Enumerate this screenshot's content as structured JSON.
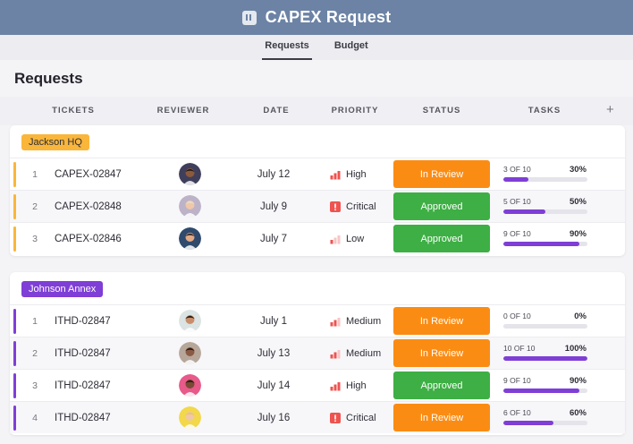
{
  "app": {
    "title": "CAPEX Request"
  },
  "tabs": [
    {
      "label": "Requests",
      "active": true
    },
    {
      "label": "Budget",
      "active": false
    }
  ],
  "page": {
    "title": "Requests"
  },
  "columns": {
    "tickets": "TICKETS",
    "reviewer": "REVIEWER",
    "date": "DATE",
    "priority": "PRIORITY",
    "status": "STATUS",
    "tasks": "TASKS",
    "add": "+"
  },
  "colors": {
    "high": "#ef5350",
    "critical": "#ef5350",
    "in_review": "#fb8c13",
    "approved": "#3daf44",
    "progress": "#7f3ed6"
  },
  "groups": [
    {
      "name": "Jackson HQ",
      "tag_color": "#f9b63b",
      "tag_text_color": "#2d2d36",
      "accent": "#f9b63b",
      "rows": [
        {
          "num": "1",
          "ticket": "CAPEX-02847",
          "reviewer_icon": "avatar-man-dark-hair-icon",
          "date": "July 12",
          "priority": "High",
          "priority_icon": "signal-bars-high-icon",
          "status": "In Review",
          "status_key": "in_review",
          "tasks": "3 OF 10",
          "percent": "30%",
          "progress": 0.3
        },
        {
          "num": "2",
          "ticket": "CAPEX-02848",
          "reviewer_icon": "avatar-woman-blonde-icon",
          "date": "July 9",
          "priority": "Critical",
          "priority_icon": "exclamation-critical-icon",
          "status": "Approved",
          "status_key": "approved",
          "tasks": "5 OF 10",
          "percent": "50%",
          "progress": 0.5
        },
        {
          "num": "3",
          "ticket": "CAPEX-02846",
          "reviewer_icon": "avatar-man-smiling-icon",
          "date": "July 7",
          "priority": "Low",
          "priority_icon": "signal-bars-low-icon",
          "status": "Approved",
          "status_key": "approved",
          "tasks": "9 OF 10",
          "percent": "90%",
          "progress": 0.9
        }
      ]
    },
    {
      "name": "Johnson Annex",
      "tag_color": "#7f3ed6",
      "tag_text_color": "#ffffff",
      "accent": "#7f3ed6",
      "rows": [
        {
          "num": "1",
          "ticket": "ITHD-02847",
          "reviewer_icon": "avatar-man-beard-icon",
          "date": "July 1",
          "priority": "Medium",
          "priority_icon": "signal-bars-medium-icon",
          "status": "In Review",
          "status_key": "in_review",
          "tasks": "0 OF 10",
          "percent": "0%",
          "progress": 0.0
        },
        {
          "num": "2",
          "ticket": "ITHD-02847",
          "reviewer_icon": "avatar-woman-dark-hair-icon",
          "date": "July 13",
          "priority": "Medium",
          "priority_icon": "signal-bars-medium-icon",
          "status": "In Review",
          "status_key": "in_review",
          "tasks": "10 OF 10",
          "percent": "100%",
          "progress": 1.0
        },
        {
          "num": "3",
          "ticket": "ITHD-02847",
          "reviewer_icon": "avatar-woman-curly-hair-icon",
          "date": "July 14",
          "priority": "High",
          "priority_icon": "signal-bars-high-icon",
          "status": "Approved",
          "status_key": "approved",
          "tasks": "9 OF 10",
          "percent": "90%",
          "progress": 0.9
        },
        {
          "num": "4",
          "ticket": "ITHD-02847",
          "reviewer_icon": "avatar-woman-light-hair-icon",
          "date": "July 16",
          "priority": "Critical",
          "priority_icon": "exclamation-critical-icon",
          "status": "In Review",
          "status_key": "in_review",
          "tasks": "6 OF 10",
          "percent": "60%",
          "progress": 0.6
        }
      ]
    }
  ]
}
